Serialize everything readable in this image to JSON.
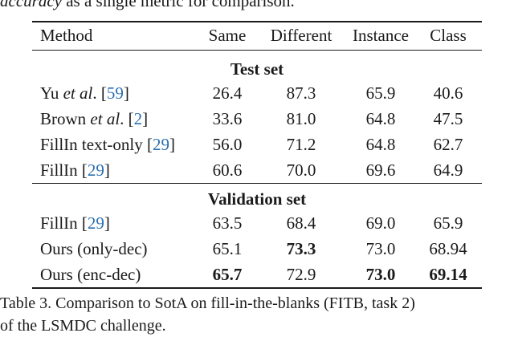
{
  "top_fragment": {
    "italic": "accuracy",
    "rest": " as a single metric for comparison."
  },
  "table": {
    "headers": [
      "Method",
      "Same",
      "Different",
      "Instance",
      "Class"
    ],
    "sections": [
      {
        "title": "Test set",
        "rows": [
          {
            "method_pre": "Yu ",
            "method_em": "et al",
            "method_post": ". [",
            "cite": "59",
            "method_close": "]",
            "values": [
              "26.4",
              "87.3",
              "65.9",
              "40.6"
            ],
            "bold": []
          },
          {
            "method_pre": "Brown ",
            "method_em": "et al",
            "method_post": ". [",
            "cite": "2",
            "method_close": "]",
            "values": [
              "33.6",
              "81.0",
              "64.8",
              "47.5"
            ],
            "bold": []
          },
          {
            "method_pre": "FillIn text-only [",
            "method_em": "",
            "method_post": "",
            "cite": "29",
            "method_close": "]",
            "values": [
              "56.0",
              "71.2",
              "64.8",
              "62.7"
            ],
            "bold": []
          },
          {
            "method_pre": "FillIn [",
            "method_em": "",
            "method_post": "",
            "cite": "29",
            "method_close": "]",
            "values": [
              "60.6",
              "70.0",
              "69.6",
              "64.9"
            ],
            "bold": []
          }
        ]
      },
      {
        "title": "Validation set",
        "rows": [
          {
            "method_pre": "FillIn [",
            "method_em": "",
            "method_post": "",
            "cite": "29",
            "method_close": "]",
            "values": [
              "63.5",
              "68.4",
              "69.0",
              "65.9"
            ],
            "bold": []
          },
          {
            "method_pre": "Ours (only-dec)",
            "method_em": "",
            "method_post": "",
            "cite": "",
            "method_close": "",
            "values": [
              "65.1",
              "73.3",
              "73.0",
              "68.94"
            ],
            "bold": [
              1
            ]
          },
          {
            "method_pre": "Ours (enc-dec)",
            "method_em": "",
            "method_post": "",
            "cite": "",
            "method_close": "",
            "values": [
              "65.7",
              "72.9",
              "73.0",
              "69.14"
            ],
            "bold": [
              0,
              2,
              3
            ]
          }
        ]
      }
    ]
  },
  "caption": {
    "line1": "Table 3. Comparison to SotA on fill-in-the-blanks (FITB, task 2)",
    "line2": "of the LSMDC challenge."
  }
}
